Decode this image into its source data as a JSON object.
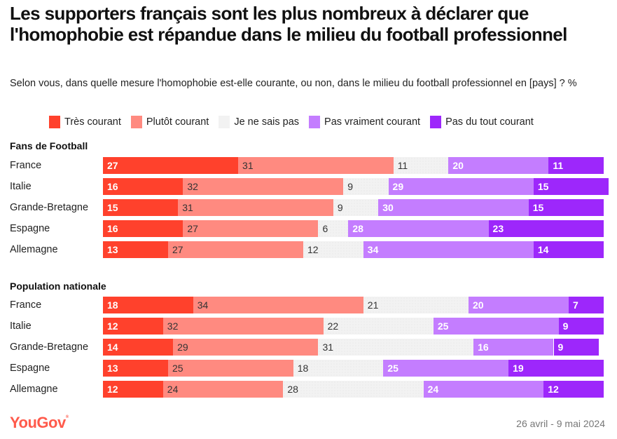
{
  "header": {
    "title": "Les supporters français sont les plus nombreux à déclarer que l'homophobie est répandue dans le milieu du football professionnel",
    "subtitle": "Selon vous, dans quelle mesure l'homophobie est-elle courante, ou non, dans le milieu du football professionnel en [pays] ? %"
  },
  "footer": {
    "brand": "YouGov",
    "brand_mark": "®",
    "date": "26 avril - 9 mai 2024"
  },
  "chart_data": {
    "type": "bar",
    "orientation": "horizontal-stacked-100",
    "title": "Les supporters français sont les plus nombreux à déclarer que l'homophobie est répandue dans le milieu du football professionnel",
    "subtitle": "Selon vous, dans quelle mesure l'homophobie est-elle courante, ou non, dans le milieu du football professionnel en [pays] ? %",
    "unit": "%",
    "xlim": [
      0,
      100
    ],
    "grid": false,
    "legend_position": "top",
    "legend": [
      {
        "name": "Très courant",
        "color": "#ff412c"
      },
      {
        "name": "Plutôt courant",
        "color": "#ff8a80"
      },
      {
        "name": "Je ne sais pas",
        "color": "#f2f2f2"
      },
      {
        "name": "Pas vraiment courant",
        "color": "#c47dff"
      },
      {
        "name": "Pas du tout courant",
        "color": "#9d27fb"
      }
    ],
    "groups": [
      {
        "name": "Fans de Football",
        "categories": [
          "France",
          "Italie",
          "Grande-Bretagne",
          "Espagne",
          "Allemagne"
        ],
        "series": [
          {
            "name": "Très courant",
            "values": [
              27,
              16,
              15,
              16,
              13
            ]
          },
          {
            "name": "Plutôt courant",
            "values": [
              31,
              32,
              31,
              27,
              27
            ]
          },
          {
            "name": "Je ne sais pas",
            "values": [
              11,
              9,
              9,
              6,
              12
            ]
          },
          {
            "name": "Pas vraiment courant",
            "values": [
              20,
              29,
              30,
              28,
              34
            ]
          },
          {
            "name": "Pas du tout courant",
            "values": [
              11,
              15,
              15,
              23,
              14
            ]
          }
        ]
      },
      {
        "name": "Population nationale",
        "categories": [
          "France",
          "Italie",
          "Grande-Bretagne",
          "Espagne",
          "Allemagne"
        ],
        "series": [
          {
            "name": "Très courant",
            "values": [
              18,
              12,
              14,
              13,
              12
            ]
          },
          {
            "name": "Plutôt courant",
            "values": [
              34,
              32,
              29,
              25,
              24
            ]
          },
          {
            "name": "Je ne sais pas",
            "values": [
              21,
              22,
              31,
              18,
              28
            ]
          },
          {
            "name": "Pas vraiment courant",
            "values": [
              20,
              25,
              16,
              25,
              24
            ]
          },
          {
            "name": "Pas du tout courant",
            "values": [
              7,
              9,
              9,
              19,
              12
            ]
          }
        ]
      }
    ]
  }
}
